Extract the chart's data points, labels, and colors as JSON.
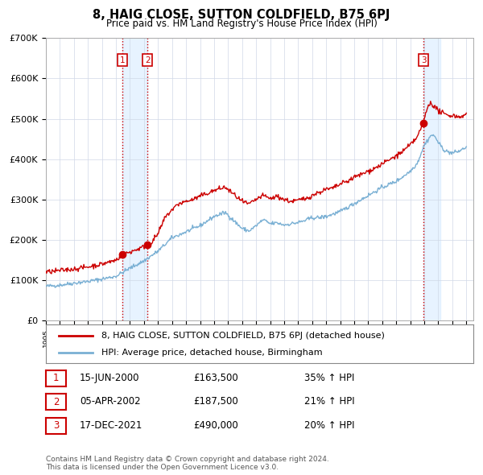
{
  "title": "8, HAIG CLOSE, SUTTON COLDFIELD, B75 6PJ",
  "subtitle": "Price paid vs. HM Land Registry's House Price Index (HPI)",
  "ylim": [
    0,
    700000
  ],
  "yticks": [
    0,
    100000,
    200000,
    300000,
    400000,
    500000,
    600000,
    700000
  ],
  "ytick_labels": [
    "£0",
    "£100K",
    "£200K",
    "£300K",
    "£400K",
    "£500K",
    "£600K",
    "£700K"
  ],
  "sale_dates": [
    2000.46,
    2002.26,
    2021.96
  ],
  "sale_prices": [
    163500,
    187500,
    490000
  ],
  "sale_labels": [
    "1",
    "2",
    "3"
  ],
  "vline_color": "#cc0000",
  "shade_color": "#ddeeff",
  "hpi_line_color": "#7ab0d4",
  "price_line_color": "#cc0000",
  "table_rows": [
    {
      "num": "1",
      "date": "15-JUN-2000",
      "price": "£163,500",
      "hpi": "35% ↑ HPI"
    },
    {
      "num": "2",
      "date": "05-APR-2002",
      "price": "£187,500",
      "hpi": "21% ↑ HPI"
    },
    {
      "num": "3",
      "date": "17-DEC-2021",
      "price": "£490,000",
      "hpi": "20% ↑ HPI"
    }
  ],
  "footer": "Contains HM Land Registry data © Crown copyright and database right 2024.\nThis data is licensed under the Open Government Licence v3.0.",
  "legend_label_price": "8, HAIG CLOSE, SUTTON COLDFIELD, B75 6PJ (detached house)",
  "legend_label_hpi": "HPI: Average price, detached house, Birmingham"
}
